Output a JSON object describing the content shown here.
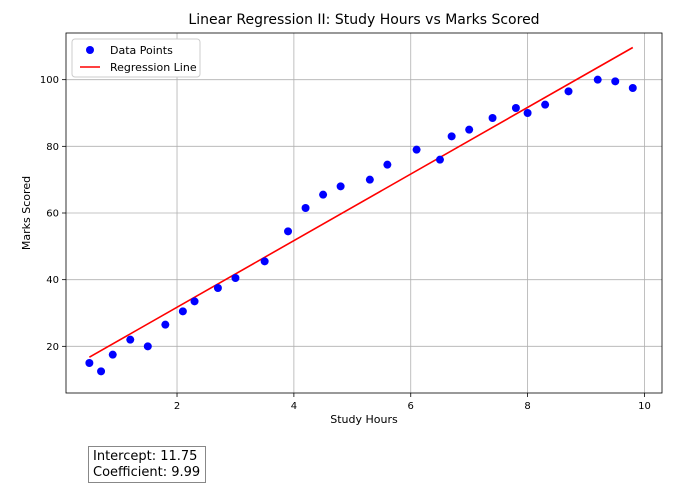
{
  "chart_data": {
    "type": "scatter",
    "title": "Linear Regression II: Study Hours vs Marks Scored",
    "xlabel": "Study Hours",
    "ylabel": "Marks Scored",
    "xlim": [
      0.1,
      10.3
    ],
    "ylim": [
      6,
      114
    ],
    "xticks": [
      2,
      4,
      6,
      8,
      10
    ],
    "yticks": [
      20,
      40,
      60,
      80,
      100
    ],
    "grid": true,
    "legend_position": "top-left",
    "series": [
      {
        "name": "Data Points",
        "kind": "scatter",
        "color": "#0000ff",
        "points": [
          [
            0.5,
            15
          ],
          [
            0.7,
            12.5
          ],
          [
            0.9,
            17.5
          ],
          [
            1.2,
            22
          ],
          [
            1.5,
            20
          ],
          [
            1.8,
            26.5
          ],
          [
            2.1,
            30.5
          ],
          [
            2.3,
            33.5
          ],
          [
            2.7,
            37.5
          ],
          [
            3.0,
            40.5
          ],
          [
            3.5,
            45.5
          ],
          [
            3.9,
            54.5
          ],
          [
            4.2,
            61.5
          ],
          [
            4.5,
            65.5
          ],
          [
            4.8,
            68
          ],
          [
            5.3,
            70
          ],
          [
            5.6,
            74.5
          ],
          [
            6.1,
            79
          ],
          [
            6.5,
            76
          ],
          [
            6.7,
            83
          ],
          [
            7.0,
            85
          ],
          [
            7.4,
            88.5
          ],
          [
            7.8,
            91.5
          ],
          [
            8.0,
            90
          ],
          [
            8.3,
            92.5
          ],
          [
            8.7,
            96.5
          ],
          [
            9.2,
            100
          ],
          [
            9.5,
            99.5
          ],
          [
            9.8,
            97.5
          ]
        ]
      },
      {
        "name": "Regression Line",
        "kind": "line",
        "color": "#ff0000",
        "intercept": 11.75,
        "coefficient": 9.99,
        "x_range": [
          0.5,
          9.8
        ]
      }
    ]
  },
  "stats": {
    "intercept_text": "Intercept: 11.75",
    "coefficient_text": "Coefficient: 9.99"
  }
}
